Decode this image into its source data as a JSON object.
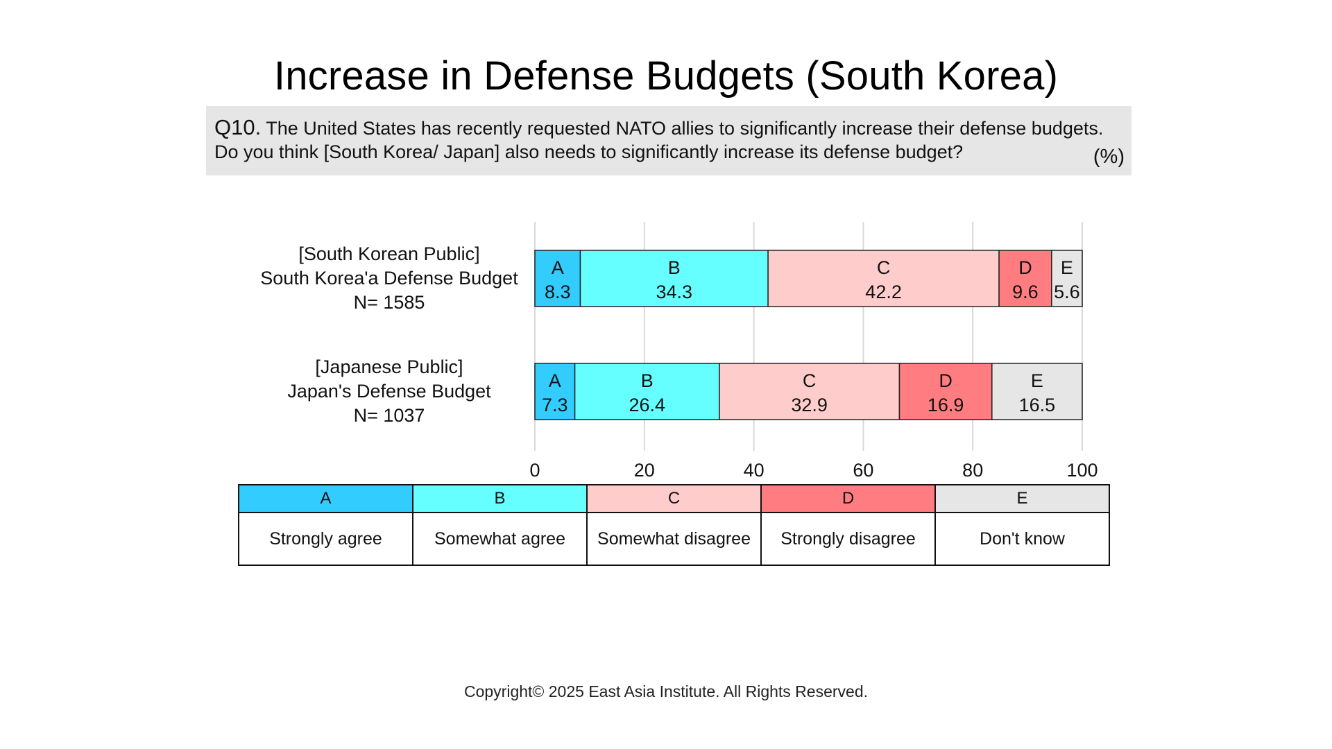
{
  "title": "Increase in Defense Budgets (South Korea)",
  "question": {
    "number": "Q10.",
    "line1": "The United States has recently requested NATO allies to significantly increase their defense budgets.",
    "line2": "Do you think [South Korea/ Japan] also needs to significantly increase its defense budget?",
    "unit": "(%)"
  },
  "chart_data": {
    "type": "bar",
    "orientation": "horizontal",
    "stacked": true,
    "categories": [
      {
        "line1": "[South Korean Public]",
        "line2": "South Korea'a Defense Budget",
        "line3": "N= 1585"
      },
      {
        "line1": "[Japanese Public]",
        "line2": "Japan's Defense Budget",
        "line3": "N= 1037"
      }
    ],
    "series": [
      {
        "name": "A",
        "color": "#33ccff",
        "values": [
          8.3,
          7.3
        ]
      },
      {
        "name": "B",
        "color": "#66ffff",
        "values": [
          34.3,
          26.4
        ]
      },
      {
        "name": "C",
        "color": "#ffcccc",
        "values": [
          42.2,
          32.9
        ]
      },
      {
        "name": "D",
        "color": "#ff7c80",
        "values": [
          9.6,
          16.9
        ]
      },
      {
        "name": "E",
        "color": "#e6e6e6",
        "values": [
          5.6,
          16.5
        ]
      }
    ],
    "xlim": [
      0,
      100
    ],
    "xticks": [
      "0",
      "20",
      "40",
      "60",
      "80",
      "100"
    ],
    "grid": true
  },
  "legend": [
    {
      "key": "A",
      "label": "Strongly agree",
      "color": "#33ccff"
    },
    {
      "key": "B",
      "label": "Somewhat agree",
      "color": "#66ffff"
    },
    {
      "key": "C",
      "label": "Somewhat disagree",
      "color": "#ffcccc"
    },
    {
      "key": "D",
      "label": "Strongly disagree",
      "color": "#ff7c80"
    },
    {
      "key": "E",
      "label": "Don't know",
      "color": "#e6e6e6"
    }
  ],
  "copyright": "Copyright© 2025 East Asia Institute. All Rights Reserved."
}
